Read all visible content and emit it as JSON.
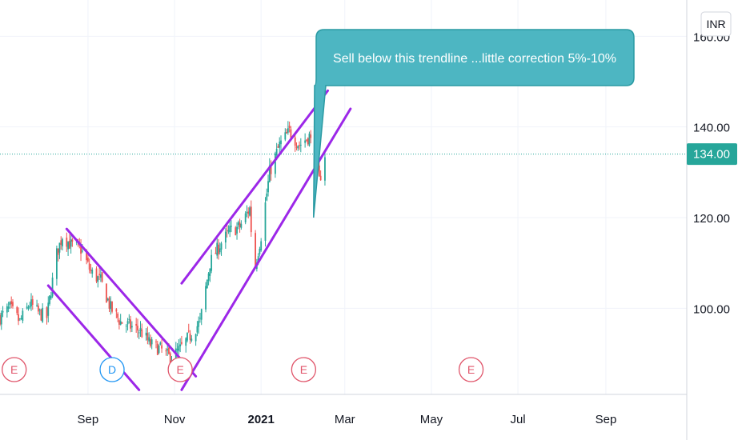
{
  "currency": "INR",
  "annotation": "Sell below this trendline ...little correction 5%-10%",
  "colors": {
    "up": "#26a69a",
    "down": "#ef5350",
    "trendline": "#9c27e8",
    "callout_fill": "#4db6c2",
    "callout_border": "#2a9aa3",
    "earnings": "#e0566b",
    "dividend": "#2196f3",
    "grid": "#f0f3fa",
    "price_line": "#26a69a"
  },
  "events": [
    {
      "date": "2020-07-11",
      "label": "E",
      "kind": "earnings"
    },
    {
      "date": "2020-09-18",
      "label": "D",
      "kind": "dividend"
    },
    {
      "date": "2020-11-05",
      "label": "E",
      "kind": "earnings"
    },
    {
      "date": "2021-01-31",
      "label": "E",
      "kind": "earnings"
    },
    {
      "date": "2021-05-29",
      "label": "E",
      "kind": "earnings"
    }
  ],
  "chart_data": {
    "type": "candlestick",
    "x_start": "2020-07-01",
    "x_end": "2021-10-28",
    "y_range": [
      81,
      168
    ],
    "y_ticks": [
      100,
      120,
      140,
      160
    ],
    "y_tick_labels": [
      "100.00",
      "120.00",
      "140.00",
      "160.00"
    ],
    "x_ticks": [
      {
        "date": "2020-09-01",
        "label": "Sep",
        "bold": false
      },
      {
        "date": "2020-11-01",
        "label": "Nov",
        "bold": false
      },
      {
        "date": "2021-01-01",
        "label": "2021",
        "bold": true
      },
      {
        "date": "2021-03-01",
        "label": "Mar",
        "bold": false
      },
      {
        "date": "2021-05-01",
        "label": "May",
        "bold": false
      },
      {
        "date": "2021-07-01",
        "label": "Jul",
        "bold": false
      },
      {
        "date": "2021-09-01",
        "label": "Sep",
        "bold": false
      }
    ],
    "last_price": 134,
    "last_price_label": "134.00",
    "close_path": [
      [
        "2020-07-01",
        98
      ],
      [
        "2020-07-08",
        100
      ],
      [
        "2020-07-15",
        97
      ],
      [
        "2020-07-22",
        101
      ],
      [
        "2020-07-28",
        99
      ],
      [
        "2020-08-03",
        98
      ],
      [
        "2020-08-10",
        112
      ],
      [
        "2020-08-14",
        116
      ],
      [
        "2020-08-20",
        114
      ],
      [
        "2020-08-27",
        113
      ],
      [
        "2020-09-03",
        108
      ],
      [
        "2020-09-10",
        106
      ],
      [
        "2020-09-17",
        100
      ],
      [
        "2020-09-24",
        97
      ],
      [
        "2020-10-01",
        96
      ],
      [
        "2020-10-08",
        95
      ],
      [
        "2020-10-15",
        92
      ],
      [
        "2020-10-22",
        91
      ],
      [
        "2020-10-29",
        89
      ],
      [
        "2020-11-05",
        91
      ],
      [
        "2020-11-12",
        94
      ],
      [
        "2020-11-19",
        97
      ],
      [
        "2020-11-26",
        110
      ],
      [
        "2020-12-03",
        114
      ],
      [
        "2020-12-10",
        117
      ],
      [
        "2020-12-17",
        118
      ],
      [
        "2020-12-24",
        122
      ],
      [
        "2020-12-27",
        108
      ],
      [
        "2021-01-01",
        116
      ],
      [
        "2021-01-07",
        130
      ],
      [
        "2021-01-14",
        136
      ],
      [
        "2021-01-21",
        139
      ],
      [
        "2021-01-28",
        136
      ],
      [
        "2021-02-04",
        138
      ],
      [
        "2021-02-08",
        133
      ],
      [
        "2021-02-11",
        128
      ],
      [
        "2021-02-15",
        134
      ]
    ],
    "trendlines": [
      {
        "name": "falling-channel-upper",
        "from": [
          "2020-08-17",
          117.5
        ],
        "to": [
          "2020-11-16",
          85
        ]
      },
      {
        "name": "falling-channel-lower",
        "from": [
          "2020-08-04",
          105
        ],
        "to": [
          "2020-10-07",
          82
        ]
      },
      {
        "name": "rising-channel-upper",
        "from": [
          "2020-11-06",
          105.5
        ],
        "to": [
          "2021-02-17",
          148
        ]
      },
      {
        "name": "rising-channel-lower",
        "from": [
          "2020-11-06",
          82
        ],
        "to": [
          "2021-03-05",
          144
        ]
      }
    ],
    "callout_anchor": [
      "2021-02-07",
      120
    ]
  }
}
